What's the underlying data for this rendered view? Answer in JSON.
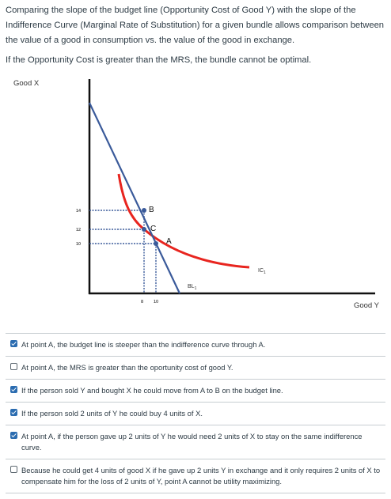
{
  "intro": {
    "paragraph": "Comparing the slope of the budget line (Opportunity Cost of Good Y) with the slope of the Indifference Curve (Marginal Rate of Substitution) for a given bundle allows comparison between the value of a good in consumption vs. the value of the good in exchange.",
    "rule": "If the Opportunity Cost is greater than the MRS, the bundle cannot be optimal."
  },
  "figure": {
    "y_axis_label": "Good X",
    "x_axis_label": "Good Y",
    "y_ticks": [
      "14",
      "12",
      "10"
    ],
    "x_ticks": [
      "8",
      "10"
    ],
    "points": [
      "B",
      "C",
      "A"
    ],
    "budget_line_label": "BL",
    "budget_line_subscript": "1",
    "curve_label": "IC",
    "curve_subscript": "1",
    "colors": {
      "budget_line": "#3a5a9a",
      "indifference_curve": "#e8251f",
      "axis": "#111111",
      "guide": "#3a5a9a"
    }
  },
  "options": [
    {
      "text": "At point A, the budget line is steeper than the indifference curve through A.",
      "checked": true
    },
    {
      "text": "At point A, the MRS is greater than the oportunity cost of good Y.",
      "checked": false
    },
    {
      "text": "If the person sold Y and bought X he could move from A to B on the budget line.",
      "checked": true
    },
    {
      "text": "If the person sold 2 units of Y he could buy 4 units of X.",
      "checked": true
    },
    {
      "text": "At point A, if the person gave up 2 units of Y he would need 2 units of X to stay on the same indifference curve.",
      "checked": true
    },
    {
      "text": "Because he could get 4 units of good X if he gave up 2 units Y in exchange and it only requires 2 units of X to compensate him for the loss of 2 units of Y, point A cannot be utility maximizing.",
      "checked": false
    }
  ]
}
